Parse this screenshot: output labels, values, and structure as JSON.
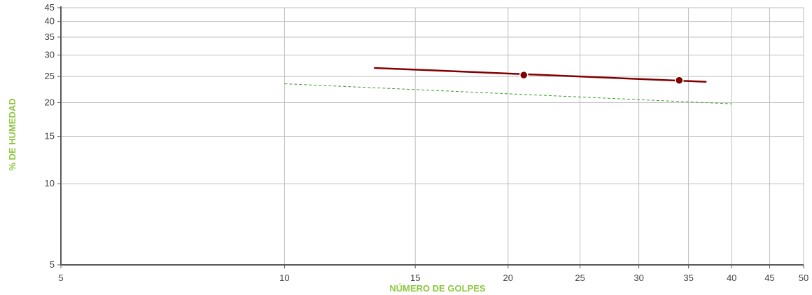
{
  "chart_data": {
    "type": "scatter",
    "xlabel": "NÚMERO DE GOLPES",
    "ylabel": "% DE HUMEDAD",
    "x_scale": "log",
    "y_scale": "log",
    "xlim": [
      5,
      50
    ],
    "ylim": [
      5,
      45
    ],
    "x_ticks": [
      5,
      10,
      15,
      20,
      25,
      30,
      35,
      40,
      45,
      50
    ],
    "y_ticks": [
      5,
      10,
      15,
      20,
      25,
      30,
      35,
      40,
      45
    ],
    "grid": true,
    "colors": {
      "axis_title": "#8dc63f",
      "trend": "#800000",
      "reference": "#3a9a2a",
      "grid": "#bfbfbf",
      "axis": "#595959"
    },
    "series": [
      {
        "type": "scatter",
        "points": [
          {
            "x": 21,
            "y": 25.3
          },
          {
            "x": 34,
            "y": 24.2
          }
        ]
      },
      {
        "type": "line",
        "style": "solid",
        "points": [
          {
            "x": 13.2,
            "y": 26.9
          },
          {
            "x": 37,
            "y": 23.9
          }
        ]
      },
      {
        "type": "line",
        "style": "dashed",
        "points": [
          {
            "x": 10,
            "y": 23.5
          },
          {
            "x": 40,
            "y": 19.8
          }
        ]
      }
    ]
  }
}
